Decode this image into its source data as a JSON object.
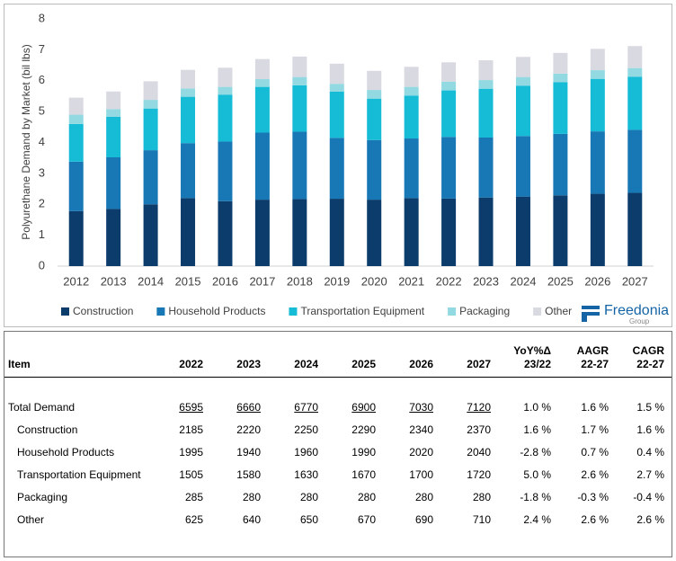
{
  "chart_data": {
    "type": "bar",
    "stacked": true,
    "y_label": "Polyurethane Demand by Market (bil lbs)",
    "categories": [
      "2012",
      "2013",
      "2014",
      "2015",
      "2016",
      "2017",
      "2018",
      "2019",
      "2020",
      "2021",
      "2022",
      "2023",
      "2024",
      "2025",
      "2026",
      "2027"
    ],
    "series": [
      {
        "name": "Construction",
        "color": "#0b3c6b",
        "values": [
          1.78,
          1.85,
          2.0,
          2.2,
          2.1,
          2.15,
          2.17,
          2.18,
          2.15,
          2.2,
          2.185,
          2.22,
          2.25,
          2.29,
          2.34,
          2.37
        ]
      },
      {
        "name": "Household Products",
        "color": "#1877b5",
        "values": [
          1.6,
          1.67,
          1.75,
          1.78,
          1.93,
          2.17,
          2.18,
          1.97,
          1.93,
          1.93,
          1.995,
          1.94,
          1.96,
          1.99,
          2.02,
          2.04
        ]
      },
      {
        "name": "Transportation Equipment",
        "color": "#16bcd6",
        "values": [
          1.22,
          1.31,
          1.35,
          1.5,
          1.52,
          1.48,
          1.5,
          1.5,
          1.34,
          1.39,
          1.505,
          1.58,
          1.63,
          1.67,
          1.7,
          1.72
        ]
      },
      {
        "name": "Packaging",
        "color": "#92d9e2",
        "values": [
          0.3,
          0.25,
          0.28,
          0.27,
          0.25,
          0.25,
          0.27,
          0.25,
          0.28,
          0.28,
          0.285,
          0.28,
          0.28,
          0.28,
          0.28,
          0.28
        ]
      },
      {
        "name": "Other",
        "color": "#d9d9e1",
        "values": [
          0.55,
          0.57,
          0.6,
          0.6,
          0.62,
          0.65,
          0.66,
          0.65,
          0.62,
          0.65,
          0.625,
          0.64,
          0.65,
          0.67,
          0.69,
          0.71
        ]
      }
    ],
    "ylim": [
      0,
      8
    ],
    "yticks": [
      0,
      1,
      2,
      3,
      4,
      5,
      6,
      7,
      8
    ],
    "grid": false
  },
  "logo": {
    "name": "Freedonia",
    "sub": "Group"
  },
  "table": {
    "columns": [
      {
        "label": "Item"
      },
      {
        "label": "2022"
      },
      {
        "label": "2023"
      },
      {
        "label": "2024"
      },
      {
        "label": "2025"
      },
      {
        "label": "2026"
      },
      {
        "label": "2027"
      },
      {
        "label": "YoY%Δ",
        "sub": "23/22"
      },
      {
        "label": "AAGR",
        "sub": "22-27"
      },
      {
        "label": "CAGR",
        "sub": "22-27"
      }
    ],
    "rows": [
      [
        "Total Demand",
        "6595",
        "6660",
        "6770",
        "6900",
        "7030",
        "7120",
        "1.0 %",
        "1.6 %",
        "1.5 %"
      ],
      [
        "Construction",
        "2185",
        "2220",
        "2250",
        "2290",
        "2340",
        "2370",
        "1.6 %",
        "1.7 %",
        "1.6 %"
      ],
      [
        "Household Products",
        "1995",
        "1940",
        "1960",
        "1990",
        "2020",
        "2040",
        "-2.8 %",
        "0.7 %",
        "0.4 %"
      ],
      [
        "Transportation Equipment",
        "1505",
        "1580",
        "1630",
        "1670",
        "1700",
        "1720",
        "5.0 %",
        "2.6 %",
        "2.7 %"
      ],
      [
        "Packaging",
        "285",
        "280",
        "280",
        "280",
        "280",
        "280",
        "-1.8 %",
        "-0.3 %",
        "-0.4 %"
      ],
      [
        "Other",
        "625",
        "640",
        "650",
        "670",
        "690",
        "710",
        "2.4 %",
        "2.6 %",
        "2.6 %"
      ]
    ]
  }
}
